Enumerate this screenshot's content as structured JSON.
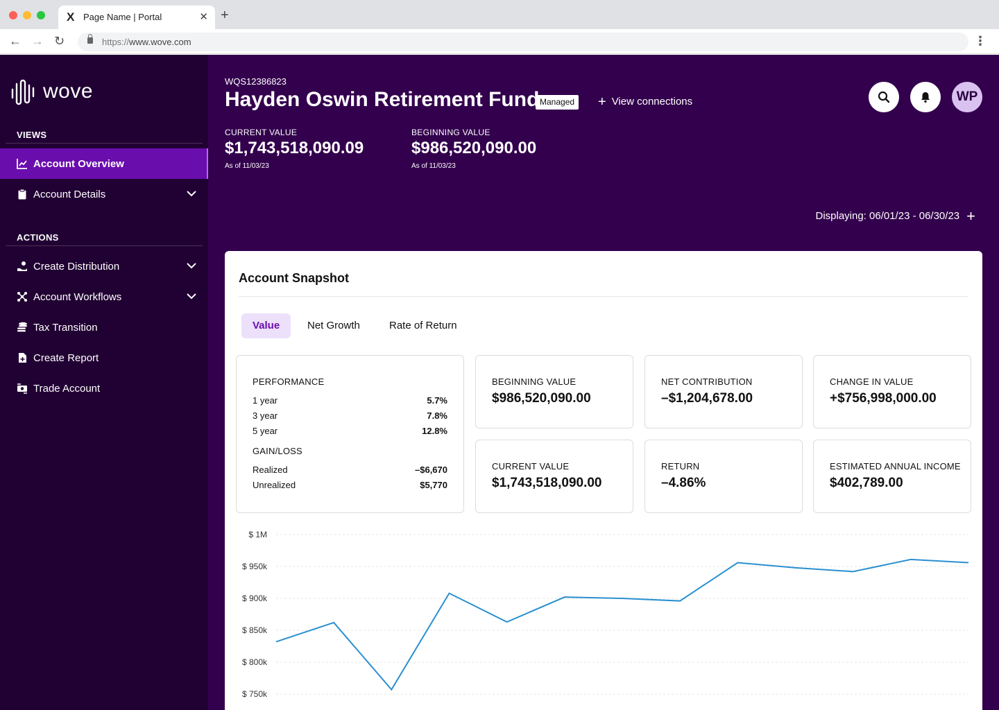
{
  "browser": {
    "tab_title": "Page Name | Portal",
    "url_scheme": "https://",
    "url_host": "www.wove.com"
  },
  "sidebar": {
    "logo_text": "wove",
    "views_label": "VIEWS",
    "actions_label": "ACTIONS",
    "views": [
      {
        "label": "Account Overview",
        "icon": "chart-line-icon",
        "active": true
      },
      {
        "label": "Account Details",
        "icon": "clipboard-icon",
        "expandable": true
      }
    ],
    "actions": [
      {
        "label": "Create Distribution",
        "icon": "hand-coin-icon",
        "expandable": true
      },
      {
        "label": "Account Workflows",
        "icon": "workflow-icon",
        "expandable": true
      },
      {
        "label": "Tax Transition",
        "icon": "coin-stack-icon"
      },
      {
        "label": "Create Report",
        "icon": "file-plus-icon"
      },
      {
        "label": "Trade Account",
        "icon": "money-exchange-icon"
      }
    ]
  },
  "header": {
    "account_id": "WQS12386823",
    "title": "Hayden Oswin Retirement Fund",
    "badge": "Managed",
    "view_connections": "View connections",
    "avatar_initials": "WP",
    "current_value_label": "CURRENT VALUE",
    "current_value": "$1,743,518,090.09",
    "current_asof": "As of 11/03/23",
    "beginning_value_label": "BEGINNING VALUE",
    "beginning_value": "$986,520,090.00",
    "beginning_asof": "As of 11/03/23",
    "displaying": "Displaying: 06/01/23 - 06/30/23"
  },
  "snapshot": {
    "title": "Account Snapshot",
    "tabs": [
      "Value",
      "Net Growth",
      "Rate of Return"
    ],
    "active_tab": "Value",
    "performance_label": "PERFORMANCE",
    "performance": [
      {
        "label": "1 year",
        "value": "5.7%"
      },
      {
        "label": "3 year",
        "value": "7.8%"
      },
      {
        "label": "5 year",
        "value": "12.8%"
      }
    ],
    "gainloss_label": "GAIN/LOSS",
    "gainloss": [
      {
        "label": "Realized",
        "value": "–$6,670"
      },
      {
        "label": "Unrealized",
        "value": "$5,770"
      }
    ],
    "stats": [
      {
        "label": "BEGINNING VALUE",
        "value": "$986,520,090.00"
      },
      {
        "label": "NET CONTRIBUTION",
        "value": "–$1,204,678.00"
      },
      {
        "label": "CHANGE IN VALUE",
        "value": "+$756,998,000.00"
      },
      {
        "label": "CURRENT VALUE",
        "value": "$1,743,518,090.00"
      },
      {
        "label": "RETURN",
        "value": "–4.86%"
      },
      {
        "label": "ESTIMATED ANNUAL INCOME",
        "value": "$402,789.00"
      }
    ]
  },
  "colors": {
    "sidebar_bg": "#210033",
    "header_bg": "#33004d",
    "active_nav": "#6a0dad",
    "line": "#2a8fd0"
  },
  "chart_data": {
    "type": "line",
    "y_ticks": [
      "$ 1M",
      "$ 950k",
      "$ 900k",
      "$ 850k",
      "$ 800k",
      "$ 750k"
    ],
    "ylim": [
      750,
      1000
    ],
    "grid": true,
    "series": [
      {
        "values": [
          832,
          862,
          757,
          908,
          863,
          902,
          900,
          896,
          956,
          948,
          942,
          961,
          956
        ]
      }
    ]
  }
}
